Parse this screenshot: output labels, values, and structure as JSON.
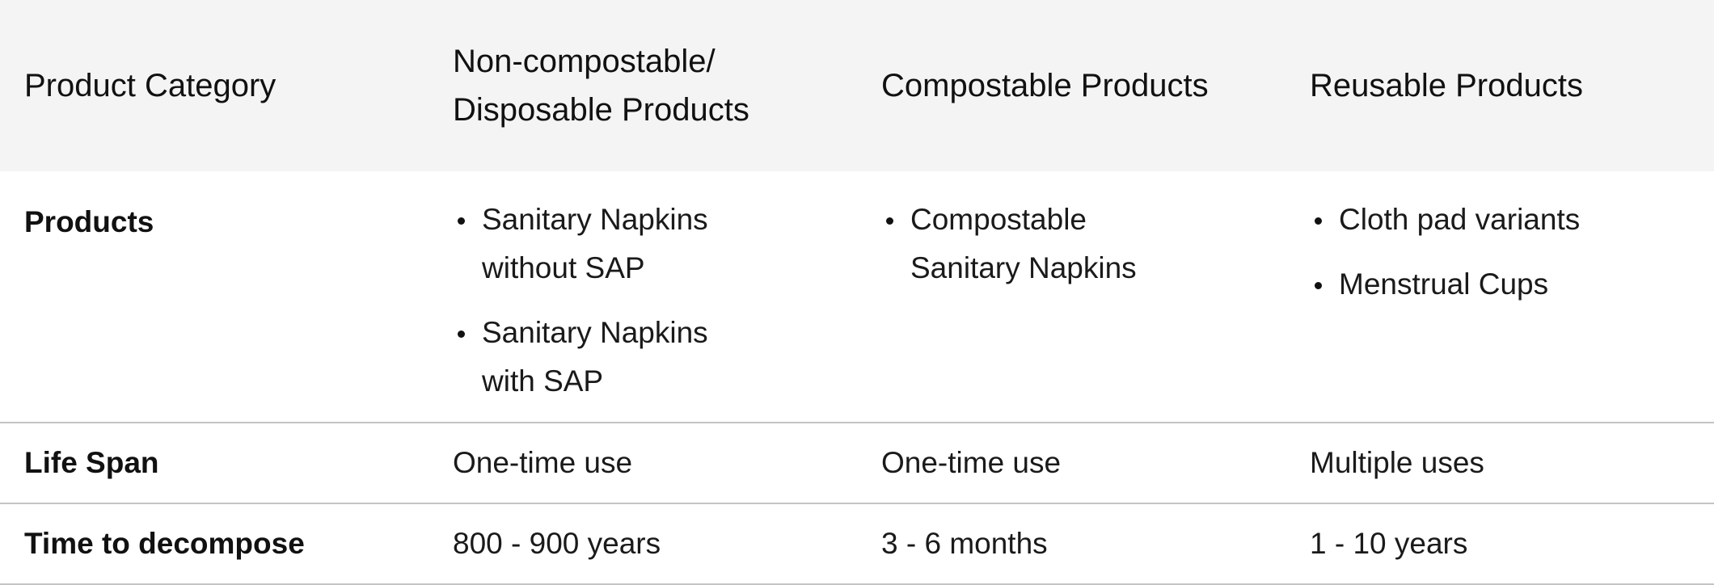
{
  "header": {
    "col1": "Product Category",
    "col2_line1": "Non-compostable/",
    "col2_line2": "Disposable Products",
    "col3": "Compostable Products",
    "col4": "Reusable Products"
  },
  "rows": {
    "products": {
      "label": "Products",
      "non_compostable": [
        "Sanitary Napkins without SAP",
        "Sanitary Napkins with SAP"
      ],
      "compostable": [
        "Compostable Sanitary Napkins"
      ],
      "reusable": [
        "Cloth pad variants",
        "Menstrual Cups"
      ]
    },
    "life_span": {
      "label": "Life Span",
      "non_compostable": "One-time use",
      "compostable": "One-time use",
      "reusable": "Multiple uses"
    },
    "time_to_decompose": {
      "label": "Time to decompose",
      "non_compostable": "800 - 900 years",
      "compostable": "3 - 6 months",
      "reusable": "1 - 10 years"
    }
  }
}
